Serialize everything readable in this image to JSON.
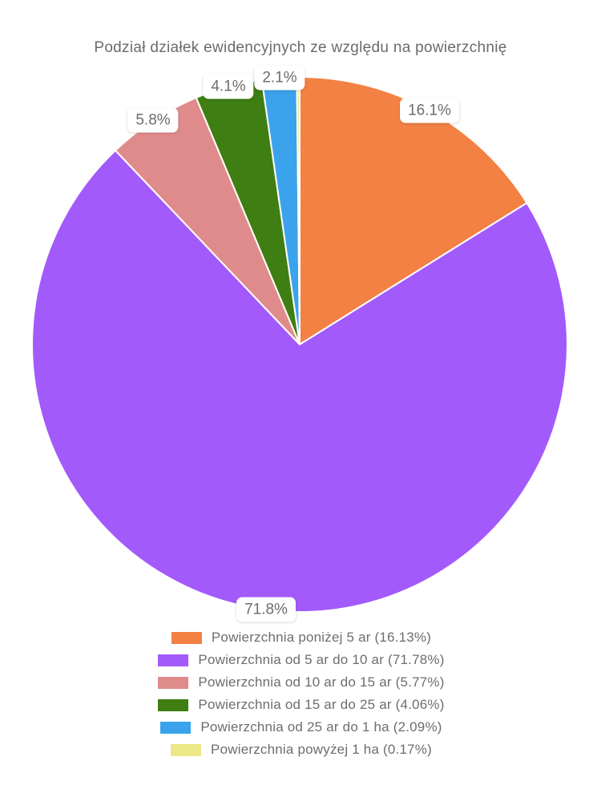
{
  "chart_data": {
    "type": "pie",
    "title": "Podział działek ewidencyjnych ze względu na powierzchnię",
    "legend_position": "bottom",
    "direction": "clockwise",
    "start_angle_deg": 0,
    "text_color": "#6d6d6d",
    "slice_border_color": "#ffffff",
    "slices": [
      {
        "label": "Powierzchnia poniżej 5 ar",
        "value": 16.13,
        "display": "16.1%",
        "color": "#F28143",
        "legend": "Powierzchnia poniżej 5 ar (16.13%)"
      },
      {
        "label": "Powierzchnia od 5 ar do 10 ar",
        "value": 71.78,
        "display": "71.8%",
        "color": "#A35AFB",
        "legend": "Powierzchnia od 5 ar do 10 ar (71.78%)"
      },
      {
        "label": "Powierzchnia od 10 ar do 15 ar",
        "value": 5.77,
        "display": "5.8%",
        "color": "#E08B8B",
        "legend": "Powierzchnia od 10 ar do 15 ar (5.77%)"
      },
      {
        "label": "Powierzchnia od 15 ar do 25 ar",
        "value": 4.06,
        "display": "4.1%",
        "color": "#3F7E12",
        "legend": "Powierzchnia od 15 ar do 25 ar (4.06%)"
      },
      {
        "label": "Powierzchnia od 25 ar do 1 ha",
        "value": 2.09,
        "display": "2.1%",
        "color": "#3BA2EC",
        "legend": "Powierzchnia od 25 ar do 1 ha (2.09%)"
      },
      {
        "label": "Powierzchnia powyżej 1 ha",
        "value": 0.17,
        "display": "",
        "color": "#ECE787",
        "legend": "Powierzchnia powyżej 1 ha (0.17%)"
      }
    ]
  }
}
